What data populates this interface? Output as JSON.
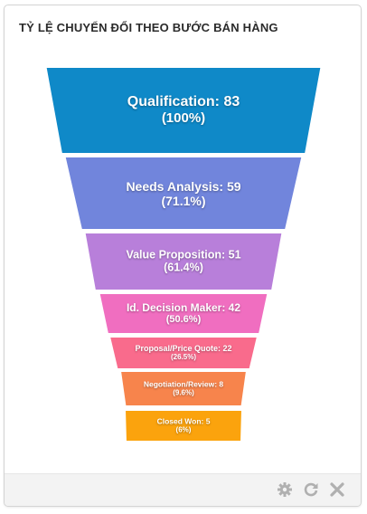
{
  "widget": {
    "title": "TỶ LỆ CHUYỂN ĐỔI THEO BƯỚC BÁN HÀNG"
  },
  "toolbar": {
    "settings_icon": "gear-icon",
    "refresh_icon": "refresh-icon",
    "close_icon": "close-icon",
    "icon_color": "#b0b0b0"
  },
  "chart_data": {
    "type": "funnel",
    "title": "TỶ LỆ CHUYỂN ĐỔI THEO BƯỚC BÁN HÀNG",
    "stages": [
      {
        "name": "Qualification",
        "value": 83,
        "percent_label": "100%",
        "color": "#0f89c8"
      },
      {
        "name": "Needs Analysis",
        "value": 59,
        "percent_label": "71.1%",
        "color": "#7185dc"
      },
      {
        "name": "Value Proposition",
        "value": 51,
        "percent_label": "61.4%",
        "color": "#b87fda"
      },
      {
        "name": "Id. Decision Maker",
        "value": 42,
        "percent_label": "50.6%",
        "color": "#f06ec0"
      },
      {
        "name": "Proposal/Price Quote",
        "value": 22,
        "percent_label": "26.5%",
        "color": "#f96b8c"
      },
      {
        "name": "Negotiation/Review",
        "value": 8,
        "percent_label": "9.6%",
        "color": "#f7844c"
      },
      {
        "name": "Closed Won",
        "value": 5,
        "percent_label": "6%",
        "color": "#fba30d"
      }
    ]
  }
}
